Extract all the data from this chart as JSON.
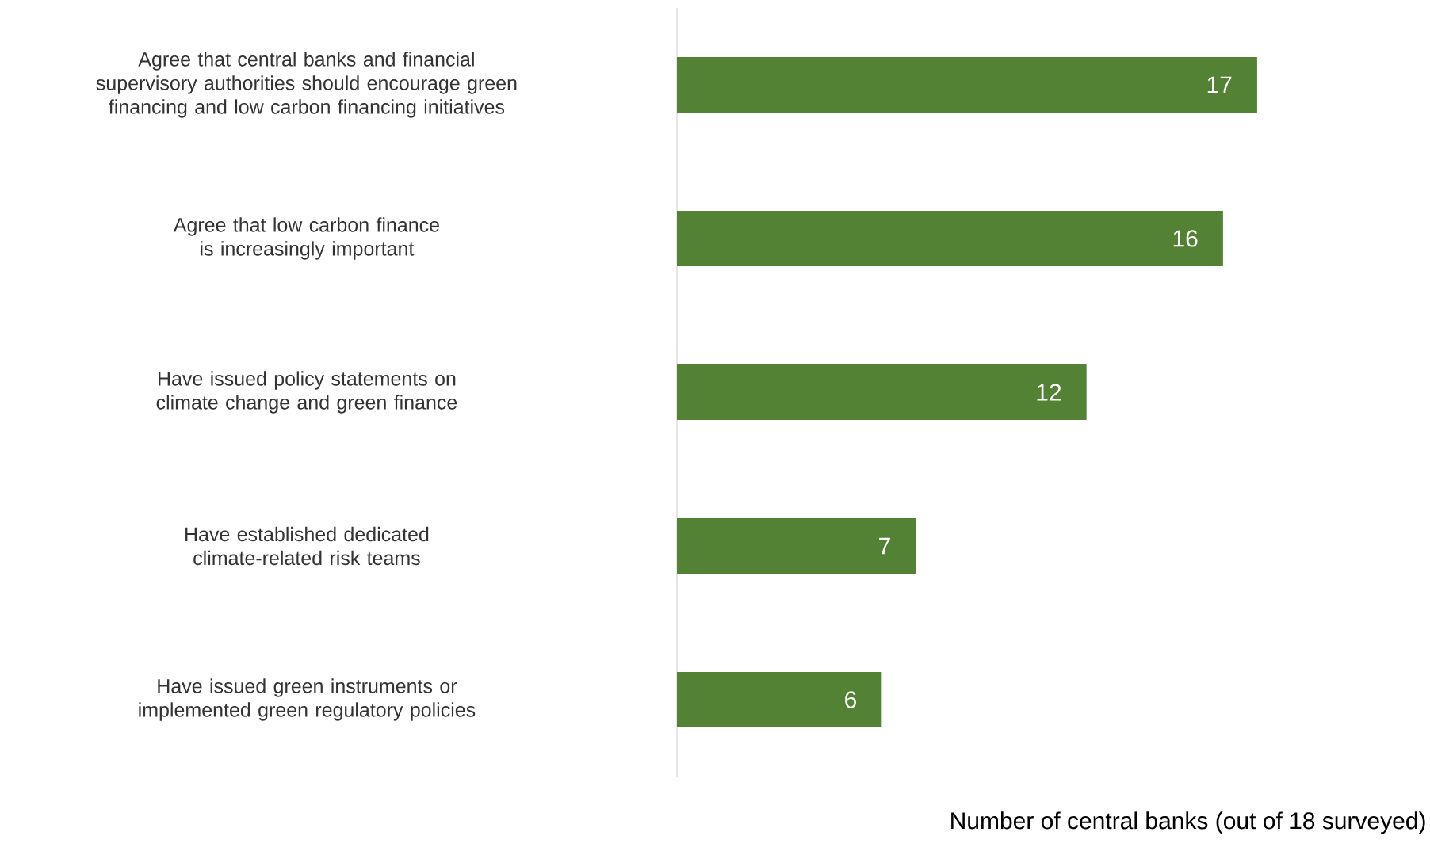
{
  "chart_data": {
    "type": "bar",
    "orientation": "horizontal",
    "xlabel": "Number of central banks (out of 18 surveyed)",
    "categories": [
      "Agree that central banks and financial supervisory authorities should encourage green financing and low carbon financing initiatives",
      "Agree that low carbon finance is increasingly important",
      "Have issued policy statements on climate change and green finance",
      "Have established dedicated climate-related risk teams",
      "Have issued green instruments or implemented green regulatory policies"
    ],
    "values": [
      17,
      16,
      12,
      7,
      6
    ],
    "color": "#548235",
    "data_labels": true,
    "tick_labels": "y"
  }
}
